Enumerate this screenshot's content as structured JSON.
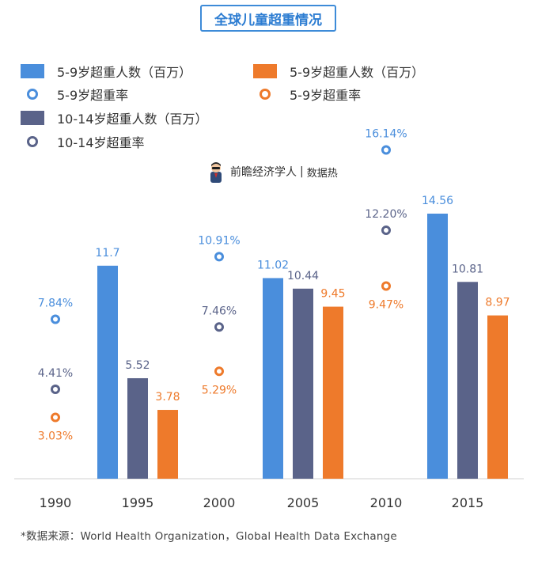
{
  "title": "全球儿童超重情况",
  "legend": [
    {
      "label": "5-9岁超重人数（百万）",
      "kind": "bar",
      "color": "#4a8edc"
    },
    {
      "label": "5-9岁超重人数（百万）",
      "kind": "bar",
      "color": "#ee7a2b"
    },
    {
      "label": "5-9岁超重率",
      "kind": "ring",
      "color": "#4a8edc"
    },
    {
      "label": "5-9岁超重率",
      "kind": "ring",
      "color": "#ee7a2b"
    },
    {
      "label": "10-14岁超重人数（百万）",
      "kind": "bar",
      "color": "#5a6389"
    },
    {
      "label": "10-14岁超重率",
      "kind": "ring",
      "color": "#5a6389"
    }
  ],
  "brand": {
    "name": "前瞻经济学人",
    "sub": "数据热"
  },
  "source": "*数据来源：World Health Organization，Global Health Data Exchange",
  "chart_data": {
    "type": "bar",
    "categories": [
      "1990",
      "1995",
      "2000",
      "2005",
      "2010",
      "2015"
    ],
    "bar_series": [
      {
        "name": "5-9岁超重人数（百万）",
        "color": "#4a8edc",
        "values": [
          null,
          11.7,
          null,
          11.02,
          null,
          14.56
        ],
        "labels": [
          "",
          "11.7",
          "",
          "11.02",
          "",
          "14.56"
        ]
      },
      {
        "name": "10-14岁超重人数（百万）",
        "color": "#5a6389",
        "values": [
          null,
          5.52,
          null,
          10.44,
          null,
          10.81
        ],
        "labels": [
          "",
          "5.52",
          "",
          "10.44",
          "",
          "10.81"
        ]
      },
      {
        "name": "5-9岁超重人数（百万）",
        "color": "#ee7a2b",
        "values": [
          null,
          3.78,
          null,
          9.45,
          null,
          8.97
        ],
        "labels": [
          "",
          "3.78",
          "",
          "9.45",
          "",
          "8.97"
        ]
      }
    ],
    "rate_series": [
      {
        "name": "5-9岁超重率",
        "color": "#4a8edc",
        "values": [
          7.84,
          null,
          10.91,
          null,
          16.14,
          null
        ],
        "labels": [
          "7.84%",
          "",
          "10.91%",
          "",
          "16.14%",
          ""
        ]
      },
      {
        "name": "10-14岁超重率",
        "color": "#5a6389",
        "values": [
          4.41,
          null,
          7.46,
          null,
          12.2,
          null
        ],
        "labels": [
          "4.41%",
          "",
          "7.46%",
          "",
          "12.20%",
          ""
        ]
      },
      {
        "name": "5-9岁超重率",
        "color": "#ee7a2b",
        "values": [
          3.03,
          null,
          5.29,
          null,
          9.47,
          null
        ],
        "labels": [
          "3.03%",
          "",
          "5.29%",
          "",
          "9.47%",
          ""
        ]
      }
    ],
    "ylim": [
      0,
      16
    ],
    "grid": false
  }
}
